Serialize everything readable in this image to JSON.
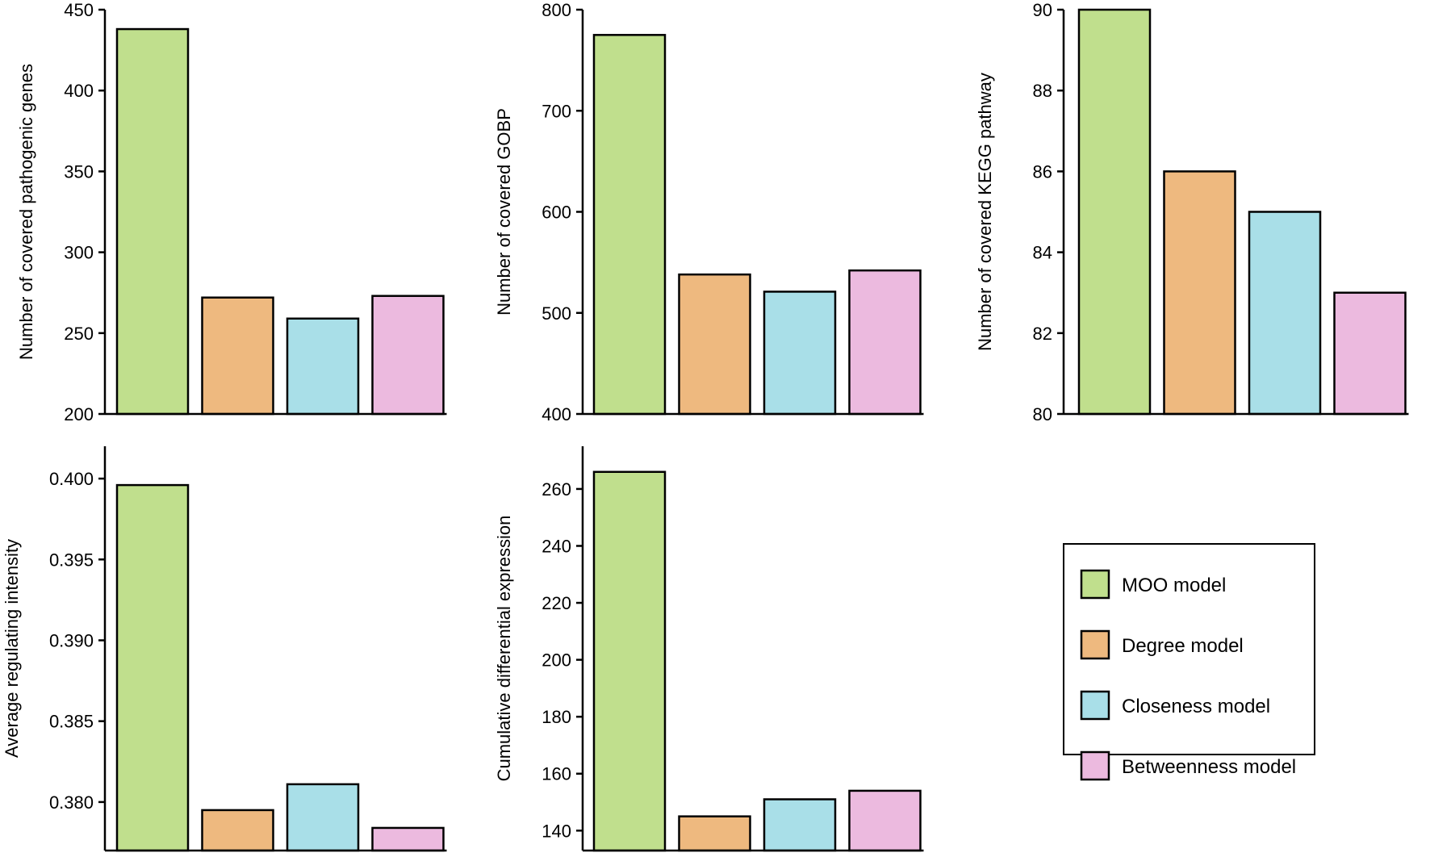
{
  "legend": {
    "items": [
      {
        "label": "MOO model",
        "color": "#c0df8d"
      },
      {
        "label": "Degree model",
        "color": "#eeb97f"
      },
      {
        "label": "Closeness model",
        "color": "#a9dfe8"
      },
      {
        "label": "Betweenness model",
        "color": "#ecbadf"
      }
    ]
  },
  "chart_data": [
    {
      "type": "bar",
      "categories": [
        "MOO model",
        "Degree model",
        "Closeness model",
        "Betweenness model"
      ],
      "values": [
        438,
        272,
        259,
        273
      ],
      "ylabel": "Number of covered pathogenic genes",
      "ylim": [
        200,
        450
      ],
      "yticks": [
        200,
        250,
        300,
        350,
        400,
        450
      ],
      "tick_labels": [
        "200",
        "250",
        "300",
        "350",
        "400",
        "450"
      ]
    },
    {
      "type": "bar",
      "categories": [
        "MOO model",
        "Degree model",
        "Closeness model",
        "Betweenness model"
      ],
      "values": [
        775,
        538,
        521,
        542
      ],
      "ylabel": "Number of covered GOBP",
      "ylim": [
        400,
        800
      ],
      "yticks": [
        400,
        500,
        600,
        700,
        800
      ],
      "tick_labels": [
        "400",
        "500",
        "600",
        "700",
        "800"
      ]
    },
    {
      "type": "bar",
      "categories": [
        "MOO model",
        "Degree model",
        "Closeness model",
        "Betweenness model"
      ],
      "values": [
        90,
        86,
        85,
        83
      ],
      "ylabel": "Number of covered KEGG pathway",
      "ylim": [
        80,
        90
      ],
      "yticks": [
        80,
        82,
        84,
        86,
        88,
        90
      ],
      "tick_labels": [
        "80",
        "82",
        "84",
        "86",
        "88",
        "90"
      ]
    },
    {
      "type": "bar",
      "categories": [
        "MOO model",
        "Degree model",
        "Closeness model",
        "Betweenness model"
      ],
      "values": [
        0.3996,
        0.3795,
        0.3811,
        0.3784
      ],
      "ylabel": "Average regulating intensity",
      "ylim": [
        0.377,
        0.402
      ],
      "yticks": [
        0.38,
        0.385,
        0.39,
        0.395,
        0.4
      ],
      "tick_labels": [
        "0.380",
        "0.385",
        "0.390",
        "0.395",
        "0.400"
      ]
    },
    {
      "type": "bar",
      "categories": [
        "MOO model",
        "Degree model",
        "Closeness model",
        "Betweenness model"
      ],
      "values": [
        266,
        145,
        151,
        154
      ],
      "ylabel": "Cumulative differential expression",
      "ylim": [
        133,
        275
      ],
      "yticks": [
        140,
        160,
        180,
        200,
        220,
        240,
        260
      ],
      "tick_labels": [
        "140",
        "160",
        "180",
        "200",
        "220",
        "240",
        "260"
      ]
    }
  ]
}
